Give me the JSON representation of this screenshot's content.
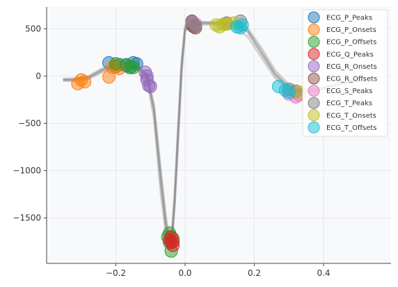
{
  "chart_data": {
    "type": "line",
    "title": "",
    "xlabel": "",
    "ylabel": "",
    "xlim": [
      -0.4,
      0.595
    ],
    "ylim": [
      -1980,
      730
    ],
    "grid": true,
    "legend_position": "top-right",
    "x_ticks": [
      {
        "value": -0.2,
        "label": "−0.2"
      },
      {
        "value": 0.0,
        "label": "0.0"
      },
      {
        "value": 0.2,
        "label": "0.2"
      },
      {
        "value": 0.4,
        "label": "0.4"
      }
    ],
    "y_ticks": [
      {
        "value": 500,
        "label": "500"
      },
      {
        "value": 0,
        "label": "0"
      },
      {
        "value": -500,
        "label": "−500"
      },
      {
        "value": -1000,
        "label": "−1000"
      },
      {
        "value": -1500,
        "label": "−1500"
      }
    ],
    "trace_color": "#888888",
    "traces": [
      {
        "x": [
          -0.35,
          -0.32,
          -0.28,
          -0.24,
          -0.2,
          -0.16,
          -0.13,
          -0.11,
          -0.09,
          -0.07,
          -0.055,
          -0.045,
          -0.038,
          -0.03,
          -0.02,
          -0.01,
          0.0,
          0.03,
          0.08,
          0.14,
          0.18,
          0.22,
          0.26,
          0.3,
          0.34,
          0.38,
          0.42,
          0.47,
          0.52
        ],
        "y": [
          -40,
          -40,
          -20,
          60,
          110,
          110,
          80,
          0,
          -350,
          -1100,
          -1580,
          -1760,
          -1700,
          -1300,
          -600,
          100,
          500,
          560,
          560,
          550,
          480,
          250,
          20,
          -120,
          -160,
          -150,
          -110,
          -60,
          -40
        ]
      },
      {
        "x": [
          -0.35,
          -0.32,
          -0.28,
          -0.24,
          -0.2,
          -0.16,
          -0.13,
          -0.11,
          -0.09,
          -0.07,
          -0.055,
          -0.045,
          -0.038,
          -0.03,
          -0.02,
          -0.01,
          0.0,
          0.03,
          0.08,
          0.14,
          0.18,
          0.22,
          0.26,
          0.3,
          0.34,
          0.38,
          0.42,
          0.47,
          0.52
        ],
        "y": [
          -50,
          -55,
          -30,
          40,
          90,
          100,
          60,
          -30,
          -450,
          -1250,
          -1680,
          -1830,
          -1760,
          -1380,
          -700,
          20,
          480,
          540,
          545,
          520,
          420,
          200,
          -20,
          -150,
          -180,
          -160,
          -120,
          -70,
          -50
        ]
      },
      {
        "x": [
          -0.35,
          -0.32,
          -0.28,
          -0.24,
          -0.2,
          -0.16,
          -0.13,
          -0.11,
          -0.09,
          -0.07,
          -0.055,
          -0.045,
          -0.038,
          -0.03,
          -0.02,
          -0.01,
          0.0,
          0.03,
          0.08,
          0.14,
          0.18,
          0.22,
          0.26,
          0.3,
          0.34,
          0.38,
          0.42,
          0.47,
          0.52
        ],
        "y": [
          -30,
          -25,
          -5,
          80,
          130,
          125,
          95,
          20,
          -300,
          -1000,
          -1500,
          -1700,
          -1640,
          -1230,
          -520,
          160,
          530,
          575,
          570,
          565,
          510,
          300,
          60,
          -90,
          -140,
          -135,
          -100,
          -50,
          -30
        ]
      },
      {
        "x": [
          -0.35,
          -0.32,
          -0.28,
          -0.24,
          -0.2,
          -0.16,
          -0.13,
          -0.11,
          -0.09,
          -0.07,
          -0.055,
          -0.045,
          -0.038,
          -0.03,
          -0.02,
          -0.01,
          0.0,
          0.03,
          0.08,
          0.14,
          0.18,
          0.22,
          0.26,
          0.3,
          0.34,
          0.38,
          0.42,
          0.47,
          0.52
        ],
        "y": [
          -45,
          -35,
          -10,
          70,
          115,
          105,
          70,
          -10,
          -380,
          -1150,
          -1620,
          -1790,
          -1720,
          -1320,
          -620,
          80,
          505,
          555,
          555,
          540,
          470,
          240,
          10,
          -130,
          -165,
          -150,
          -110,
          -60,
          -40
        ]
      },
      {
        "x": [
          -0.35,
          -0.32,
          -0.28,
          -0.24,
          -0.2,
          -0.16,
          -0.13,
          -0.11,
          -0.09,
          -0.07,
          -0.055,
          -0.045,
          -0.038,
          -0.03,
          -0.02,
          -0.01,
          0.0,
          0.03,
          0.08,
          0.14,
          0.18,
          0.22,
          0.26,
          0.3,
          0.34,
          0.38,
          0.42,
          0.47,
          0.52
        ],
        "y": [
          -35,
          -45,
          -25,
          55,
          100,
          115,
          85,
          5,
          -330,
          -1050,
          -1550,
          -1740,
          -1680,
          -1280,
          -580,
          120,
          490,
          565,
          562,
          548,
          490,
          270,
          30,
          -110,
          -155,
          -145,
          -105,
          -55,
          -35
        ]
      }
    ],
    "series": [
      {
        "name": "ECG_P_Peaks",
        "color": "#1f77b4",
        "points": [
          [
            -0.22,
            140
          ],
          [
            -0.19,
            120
          ],
          [
            -0.17,
            110
          ],
          [
            -0.15,
            140
          ],
          [
            -0.14,
            130
          ],
          [
            -0.16,
            90
          ],
          [
            -0.2,
            100
          ]
        ]
      },
      {
        "name": "ECG_P_Onsets",
        "color": "#ff7f0e",
        "points": [
          [
            -0.31,
            -80
          ],
          [
            -0.3,
            -40
          ],
          [
            -0.29,
            -60
          ],
          [
            -0.22,
            -10
          ],
          [
            -0.21,
            90
          ],
          [
            -0.2,
            110
          ],
          [
            -0.19,
            80
          ]
        ]
      },
      {
        "name": "ECG_P_Offsets",
        "color": "#2ca02c",
        "points": [
          [
            -0.2,
            130
          ],
          [
            -0.17,
            120
          ],
          [
            -0.155,
            100
          ],
          [
            -0.15,
            90
          ],
          [
            -0.045,
            -1660
          ],
          [
            -0.05,
            -1700
          ],
          [
            -0.045,
            -1760
          ],
          [
            -0.04,
            -1850
          ],
          [
            -0.035,
            -1720
          ]
        ]
      },
      {
        "name": "ECG_Q_Peaks",
        "color": "#d62728",
        "points": [
          [
            -0.045,
            -1730
          ],
          [
            -0.04,
            -1760
          ],
          [
            -0.035,
            -1790
          ],
          [
            -0.04,
            -1700
          ],
          [
            -0.035,
            -1750
          ]
        ]
      },
      {
        "name": "ECG_R_Onsets",
        "color": "#9467bd",
        "points": [
          [
            -0.115,
            40
          ],
          [
            -0.11,
            -40
          ],
          [
            -0.105,
            -100
          ],
          [
            -0.1,
            -110
          ],
          [
            -0.11,
            0
          ]
        ]
      },
      {
        "name": "ECG_R_Offsets",
        "color": "#8c564b",
        "points": [
          [
            0.02,
            540
          ],
          [
            0.025,
            520
          ],
          [
            0.03,
            510
          ],
          [
            0.02,
            580
          ]
        ]
      },
      {
        "name": "ECG_S_Peaks",
        "color": "#e377c2",
        "points": [
          [
            0.022,
            570
          ],
          [
            0.03,
            550
          ],
          [
            0.3,
            -190
          ],
          [
            0.32,
            -220
          ],
          [
            0.33,
            -200
          ]
        ]
      },
      {
        "name": "ECG_T_Peaks",
        "color": "#7f7f7f",
        "points": [
          [
            0.02,
            570
          ],
          [
            0.12,
            560
          ],
          [
            0.16,
            580
          ],
          [
            0.03,
            530
          ],
          [
            0.32,
            -160
          ],
          [
            0.3,
            -140
          ]
        ]
      },
      {
        "name": "ECG_T_Onsets",
        "color": "#bcbd22",
        "points": [
          [
            0.09,
            540
          ],
          [
            0.1,
            520
          ],
          [
            0.11,
            545
          ],
          [
            0.14,
            560
          ],
          [
            0.12,
            550
          ],
          [
            0.33,
            -170
          ]
        ]
      },
      {
        "name": "ECG_T_Offsets",
        "color": "#17becf",
        "points": [
          [
            0.15,
            520
          ],
          [
            0.165,
            540
          ],
          [
            0.16,
            510
          ],
          [
            0.27,
            -110
          ],
          [
            0.29,
            -150
          ],
          [
            0.3,
            -170
          ]
        ]
      }
    ]
  }
}
